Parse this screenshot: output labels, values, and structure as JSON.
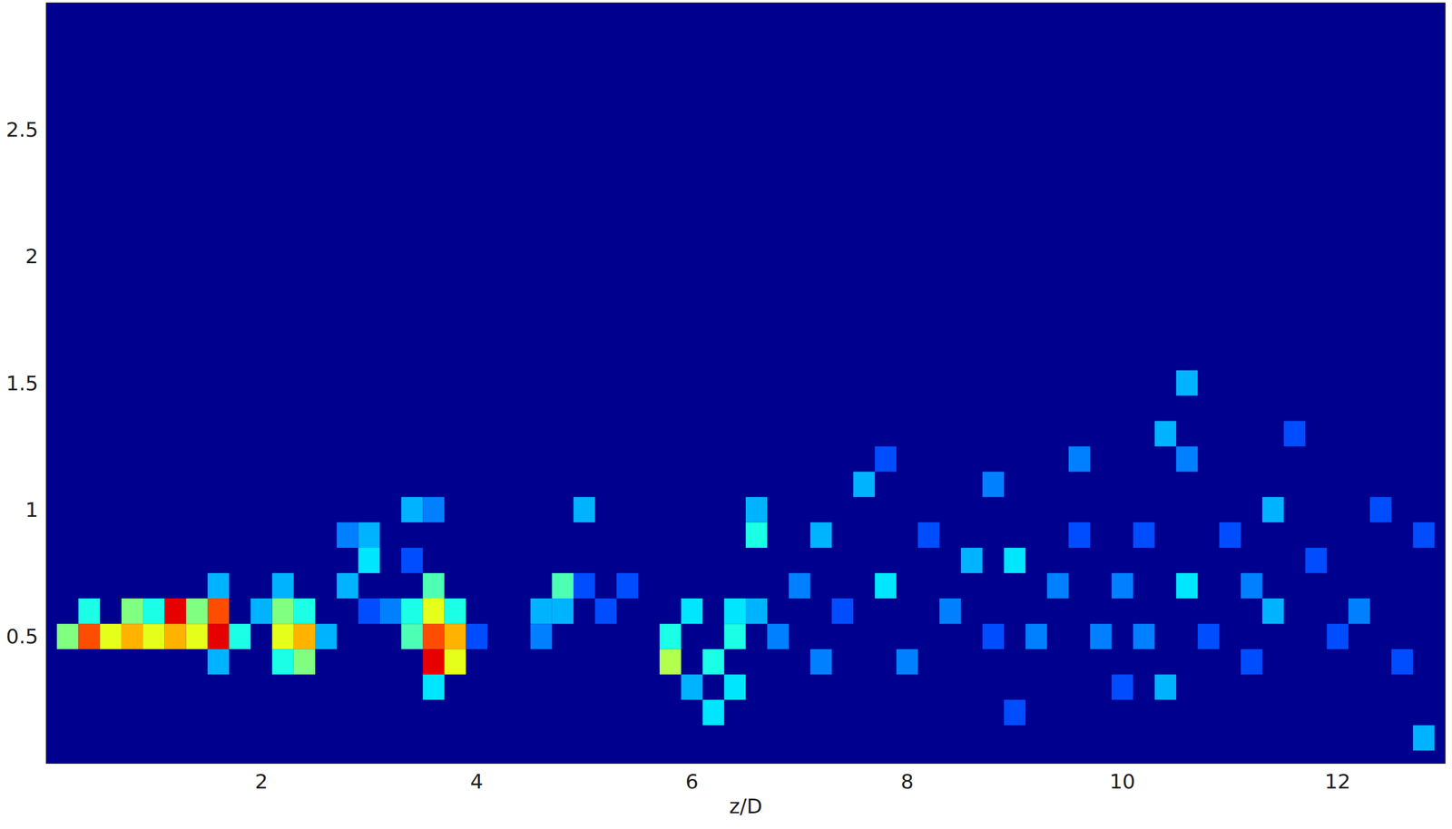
{
  "chart_data": {
    "type": "heatmap",
    "x_label": "z/D",
    "xlim": [
      0,
      13
    ],
    "ylim": [
      0,
      3
    ],
    "xticks": [
      2,
      4,
      6,
      8,
      10,
      12
    ],
    "yticks": [
      0.5,
      1,
      1.5,
      2,
      2.5
    ],
    "clim": [
      0,
      1
    ],
    "cell_size": [
      0.2,
      0.1
    ],
    "cells": [
      [
        0.2,
        0.5,
        0.5
      ],
      [
        0.4,
        0.5,
        0.8
      ],
      [
        0.6,
        0.5,
        0.6
      ],
      [
        0.8,
        0.5,
        0.7
      ],
      [
        0.8,
        0.6,
        0.5
      ],
      [
        1.0,
        0.5,
        0.6
      ],
      [
        1.2,
        0.6,
        0.9
      ],
      [
        1.2,
        0.5,
        0.7
      ],
      [
        1.0,
        0.6,
        0.4
      ],
      [
        0.4,
        0.6,
        0.4
      ],
      [
        1.4,
        0.5,
        0.6
      ],
      [
        1.6,
        0.5,
        0.9
      ],
      [
        1.6,
        0.6,
        0.8
      ],
      [
        1.4,
        0.6,
        0.5
      ],
      [
        1.8,
        0.5,
        0.4
      ],
      [
        1.6,
        0.7,
        0.3
      ],
      [
        1.6,
        0.4,
        0.3
      ],
      [
        2.2,
        0.4,
        0.4
      ],
      [
        2.2,
        0.5,
        0.6
      ],
      [
        2.4,
        0.5,
        0.7
      ],
      [
        2.2,
        0.6,
        0.5
      ],
      [
        2.4,
        0.6,
        0.4
      ],
      [
        2.4,
        0.4,
        0.5
      ],
      [
        2.6,
        0.5,
        0.3
      ],
      [
        2.0,
        0.6,
        0.3
      ],
      [
        2.2,
        0.7,
        0.3
      ],
      [
        2.8,
        0.7,
        0.3
      ],
      [
        3.0,
        0.8,
        0.35
      ],
      [
        3.0,
        0.9,
        0.3
      ],
      [
        2.8,
        0.9,
        0.25
      ],
      [
        3.2,
        0.6,
        0.25
      ],
      [
        3.0,
        0.6,
        0.2
      ],
      [
        3.4,
        1.0,
        0.3
      ],
      [
        3.6,
        1.0,
        0.25
      ],
      [
        3.4,
        0.8,
        0.2
      ],
      [
        3.6,
        0.4,
        0.9
      ],
      [
        3.6,
        0.5,
        0.8
      ],
      [
        3.6,
        0.6,
        0.6
      ],
      [
        3.8,
        0.4,
        0.6
      ],
      [
        3.8,
        0.5,
        0.7
      ],
      [
        3.6,
        0.7,
        0.45
      ],
      [
        3.4,
        0.5,
        0.45
      ],
      [
        3.4,
        0.6,
        0.4
      ],
      [
        3.8,
        0.6,
        0.4
      ],
      [
        3.6,
        0.3,
        0.35
      ],
      [
        4.0,
        0.5,
        0.2
      ],
      [
        4.8,
        0.7,
        0.45
      ],
      [
        4.8,
        0.6,
        0.3
      ],
      [
        4.6,
        0.6,
        0.3
      ],
      [
        4.6,
        0.5,
        0.25
      ],
      [
        5.0,
        0.7,
        0.2
      ],
      [
        5.0,
        1.0,
        0.3
      ],
      [
        5.2,
        0.6,
        0.2
      ],
      [
        5.4,
        0.7,
        0.2
      ],
      [
        5.8,
        0.4,
        0.55
      ],
      [
        5.8,
        0.5,
        0.4
      ],
      [
        6.0,
        0.6,
        0.35
      ],
      [
        6.0,
        0.3,
        0.3
      ],
      [
        6.2,
        0.2,
        0.35
      ],
      [
        6.2,
        0.4,
        0.4
      ],
      [
        6.4,
        0.5,
        0.4
      ],
      [
        6.4,
        0.3,
        0.35
      ],
      [
        6.4,
        0.6,
        0.35
      ],
      [
        6.6,
        0.6,
        0.3
      ],
      [
        6.6,
        0.9,
        0.4
      ],
      [
        6.6,
        1.0,
        0.3
      ],
      [
        6.8,
        0.5,
        0.25
      ],
      [
        7.0,
        0.7,
        0.25
      ],
      [
        7.2,
        0.9,
        0.3
      ],
      [
        7.2,
        0.4,
        0.25
      ],
      [
        7.4,
        0.6,
        0.2
      ],
      [
        7.6,
        1.1,
        0.3
      ],
      [
        7.8,
        0.7,
        0.35
      ],
      [
        7.8,
        1.2,
        0.2
      ],
      [
        8.0,
        0.4,
        0.25
      ],
      [
        8.2,
        0.9,
        0.2
      ],
      [
        8.4,
        0.6,
        0.25
      ],
      [
        8.6,
        0.8,
        0.3
      ],
      [
        8.8,
        1.1,
        0.25
      ],
      [
        8.8,
        0.5,
        0.2
      ],
      [
        9.0,
        0.8,
        0.35
      ],
      [
        9.0,
        0.2,
        0.2
      ],
      [
        9.2,
        0.5,
        0.25
      ],
      [
        9.4,
        0.7,
        0.25
      ],
      [
        9.6,
        1.2,
        0.25
      ],
      [
        9.6,
        0.9,
        0.2
      ],
      [
        9.8,
        0.5,
        0.25
      ],
      [
        10.0,
        0.3,
        0.2
      ],
      [
        10.0,
        0.7,
        0.25
      ],
      [
        10.2,
        0.5,
        0.25
      ],
      [
        10.2,
        0.9,
        0.2
      ],
      [
        10.4,
        1.3,
        0.3
      ],
      [
        10.6,
        1.5,
        0.3
      ],
      [
        10.6,
        0.7,
        0.35
      ],
      [
        10.4,
        0.3,
        0.3
      ],
      [
        10.6,
        1.2,
        0.25
      ],
      [
        10.8,
        0.5,
        0.2
      ],
      [
        11.0,
        0.9,
        0.2
      ],
      [
        11.2,
        0.4,
        0.2
      ],
      [
        11.2,
        0.7,
        0.25
      ],
      [
        11.4,
        0.6,
        0.3
      ],
      [
        11.4,
        1.0,
        0.3
      ],
      [
        11.6,
        1.3,
        0.2
      ],
      [
        11.8,
        0.8,
        0.2
      ],
      [
        12.0,
        0.5,
        0.2
      ],
      [
        12.2,
        0.6,
        0.25
      ],
      [
        12.4,
        1.0,
        0.2
      ],
      [
        12.6,
        0.4,
        0.2
      ],
      [
        12.8,
        0.1,
        0.3
      ],
      [
        12.8,
        0.9,
        0.2
      ]
    ]
  }
}
